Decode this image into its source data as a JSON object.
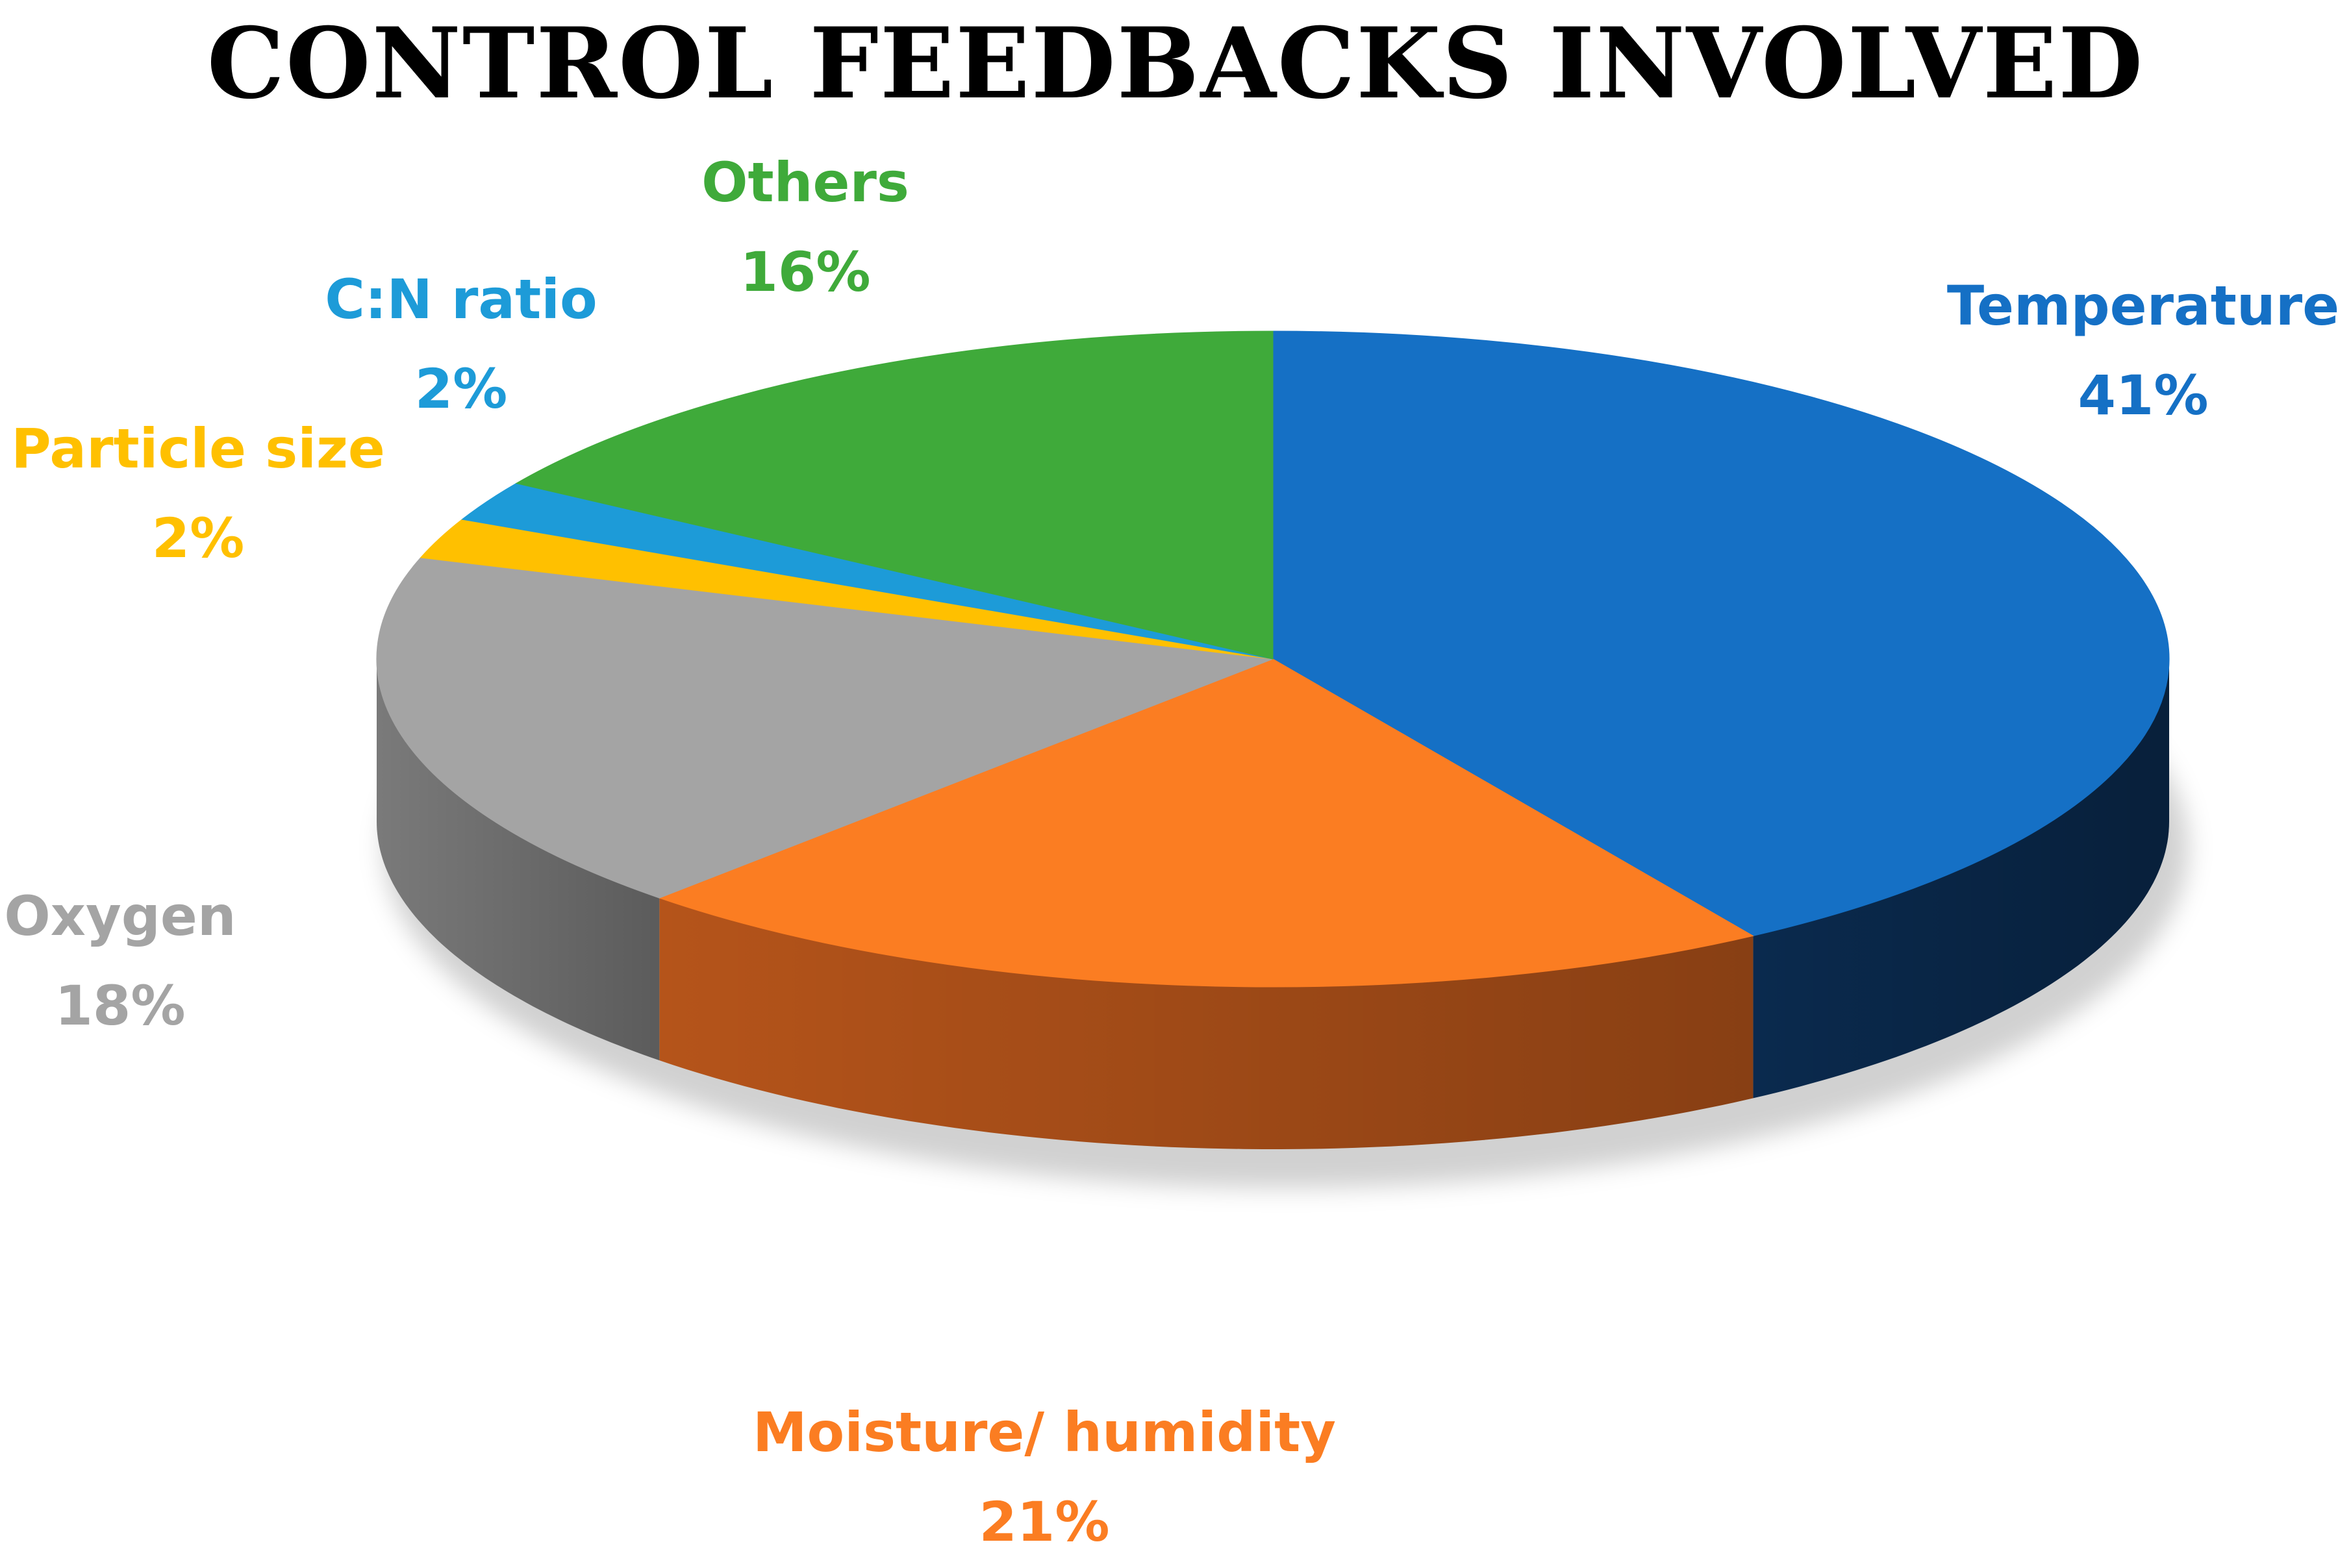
{
  "chart_data": {
    "type": "pie",
    "title": "CONTROL FEEDBACKS INVOLVED",
    "slices": [
      {
        "label": "Temperature",
        "value_label": "41%",
        "value": 41,
        "color": "#1570C5",
        "side_color": "#0A2A4E"
      },
      {
        "label": "Moisture/ humidity",
        "value_label": "21%",
        "value": 21,
        "color": "#FB7D22",
        "side_color": "#B5541A"
      },
      {
        "label": "Oxygen",
        "value_label": "18%",
        "value": 18,
        "color": "#A4A4A4",
        "side_color": "#7A7A7A"
      },
      {
        "label": "Particle size",
        "value_label": "2%",
        "value": 2,
        "color": "#FFC000",
        "side_color": "#B78A00"
      },
      {
        "label": "C:N ratio",
        "value_label": "2%",
        "value": 2,
        "color": "#1D9BD8",
        "side_color": "#136E9C"
      },
      {
        "label": "Others",
        "value_label": "16%",
        "value": 16,
        "color": "#3FAA3A",
        "side_color": "#2A7527"
      }
    ],
    "style": "3d-pie",
    "legend": "none (labels outside slices)"
  }
}
